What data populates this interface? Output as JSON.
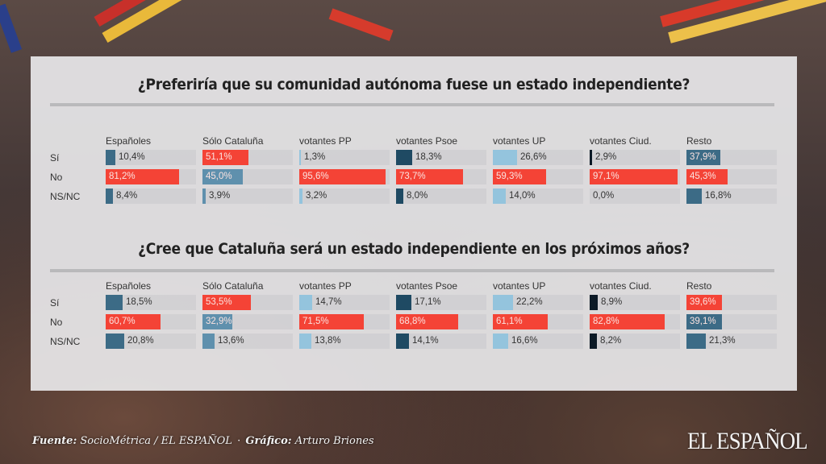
{
  "colors": {
    "red": "#f44336",
    "dark_teal": "#1f4a63",
    "slate": "#3c6b86",
    "mid_blue": "#5f90ad",
    "light_blue": "#94c4dd",
    "navy_black": "#0c1a26"
  },
  "chart_data": [
    {
      "type": "bar",
      "title": "¿Preferiría que su comunidad autónoma fuese un estado independiente?",
      "categories": [
        "Sí",
        "No",
        "NS/NC"
      ],
      "groups": [
        "Españoles",
        "Sólo Cataluña",
        "votantes PP",
        "votantes Psoe",
        "votantes UP",
        "votantes Ciud.",
        "Resto"
      ],
      "series": [
        {
          "name": "Españoles",
          "values": [
            10.4,
            81.2,
            8.4
          ],
          "labels": [
            "10,4%",
            "81,2%",
            "8,4%"
          ],
          "colors": [
            "#3c6b86",
            "#f44336",
            "#3c6b86"
          ]
        },
        {
          "name": "Sólo Cataluña",
          "values": [
            51.1,
            45.0,
            3.9
          ],
          "labels": [
            "51,1%",
            "45,0%",
            "3,9%"
          ],
          "colors": [
            "#f44336",
            "#5f90ad",
            "#5f90ad"
          ]
        },
        {
          "name": "votantes PP",
          "values": [
            1.3,
            95.6,
            3.2
          ],
          "labels": [
            "1,3%",
            "95,6%",
            "3,2%"
          ],
          "colors": [
            "#94c4dd",
            "#f44336",
            "#94c4dd"
          ]
        },
        {
          "name": "votantes Psoe",
          "values": [
            18.3,
            73.7,
            8.0
          ],
          "labels": [
            "18,3%",
            "73,7%",
            "8,0%"
          ],
          "colors": [
            "#1f4a63",
            "#f44336",
            "#1f4a63"
          ]
        },
        {
          "name": "votantes UP",
          "values": [
            26.6,
            59.3,
            14.0
          ],
          "labels": [
            "26,6%",
            "59,3%",
            "14,0%"
          ],
          "colors": [
            "#94c4dd",
            "#f44336",
            "#94c4dd"
          ]
        },
        {
          "name": "votantes Ciud.",
          "values": [
            2.9,
            97.1,
            0.0
          ],
          "labels": [
            "2,9%",
            "97,1%",
            "0,0%"
          ],
          "colors": [
            "#0c1a26",
            "#f44336",
            "#0c1a26"
          ]
        },
        {
          "name": "Resto",
          "values": [
            37.9,
            45.3,
            16.8
          ],
          "labels": [
            "37,9%",
            "45,3%",
            "16,8%"
          ],
          "colors": [
            "#3c6b86",
            "#f44336",
            "#3c6b86"
          ]
        }
      ],
      "highlight_inside": [
        [
          false,
          true,
          false
        ],
        [
          true,
          true,
          false
        ],
        [
          false,
          true,
          false
        ],
        [
          false,
          true,
          false
        ],
        [
          false,
          true,
          false
        ],
        [
          false,
          true,
          false
        ],
        [
          true,
          true,
          false
        ]
      ],
      "xlim": [
        0,
        100
      ]
    },
    {
      "type": "bar",
      "title": "¿Cree que Cataluña será un estado independiente en los próximos años?",
      "categories": [
        "Sí",
        "No",
        "NS/NC"
      ],
      "groups": [
        "Españoles",
        "Sólo Cataluña",
        "votantes PP",
        "votantes Psoe",
        "votantes UP",
        "votantes Ciud.",
        "Resto"
      ],
      "series": [
        {
          "name": "Españoles",
          "values": [
            18.5,
            60.7,
            20.8
          ],
          "labels": [
            "18,5%",
            "60,7%",
            "20,8%"
          ],
          "colors": [
            "#3c6b86",
            "#f44336",
            "#3c6b86"
          ]
        },
        {
          "name": "Sólo Cataluña",
          "values": [
            53.5,
            32.9,
            13.6
          ],
          "labels": [
            "53,5%",
            "32,9%",
            "13,6%"
          ],
          "colors": [
            "#f44336",
            "#5f90ad",
            "#5f90ad"
          ]
        },
        {
          "name": "votantes PP",
          "values": [
            14.7,
            71.5,
            13.8
          ],
          "labels": [
            "14,7%",
            "71,5%",
            "13,8%"
          ],
          "colors": [
            "#94c4dd",
            "#f44336",
            "#94c4dd"
          ]
        },
        {
          "name": "votantes Psoe",
          "values": [
            17.1,
            68.8,
            14.1
          ],
          "labels": [
            "17,1%",
            "68,8%",
            "14,1%"
          ],
          "colors": [
            "#1f4a63",
            "#f44336",
            "#1f4a63"
          ]
        },
        {
          "name": "votantes UP",
          "values": [
            22.2,
            61.1,
            16.6
          ],
          "labels": [
            "22,2%",
            "61,1%",
            "16,6%"
          ],
          "colors": [
            "#94c4dd",
            "#f44336",
            "#94c4dd"
          ]
        },
        {
          "name": "votantes Ciud.",
          "values": [
            8.9,
            82.8,
            8.2
          ],
          "labels": [
            "8,9%",
            "82,8%",
            "8,2%"
          ],
          "colors": [
            "#0c1a26",
            "#f44336",
            "#0c1a26"
          ]
        },
        {
          "name": "Resto",
          "values": [
            39.6,
            39.1,
            21.3
          ],
          "labels": [
            "39,6%",
            "39,1%",
            "21,3%"
          ],
          "colors": [
            "#f44336",
            "#3c6b86",
            "#3c6b86"
          ]
        }
      ],
      "highlight_inside": [
        [
          false,
          true,
          false
        ],
        [
          true,
          true,
          false
        ],
        [
          false,
          true,
          false
        ],
        [
          false,
          true,
          false
        ],
        [
          false,
          true,
          false
        ],
        [
          false,
          true,
          false
        ],
        [
          true,
          true,
          false
        ]
      ],
      "xlim": [
        0,
        100
      ]
    }
  ],
  "footer": {
    "source_label": "Fuente:",
    "source_value": "SocioMétrica / EL ESPAÑOL",
    "separator": "·",
    "graphic_label": "Gráfico:",
    "graphic_value": "Arturo Briones"
  },
  "logo": {
    "text": "EL ESPAÑOL"
  }
}
